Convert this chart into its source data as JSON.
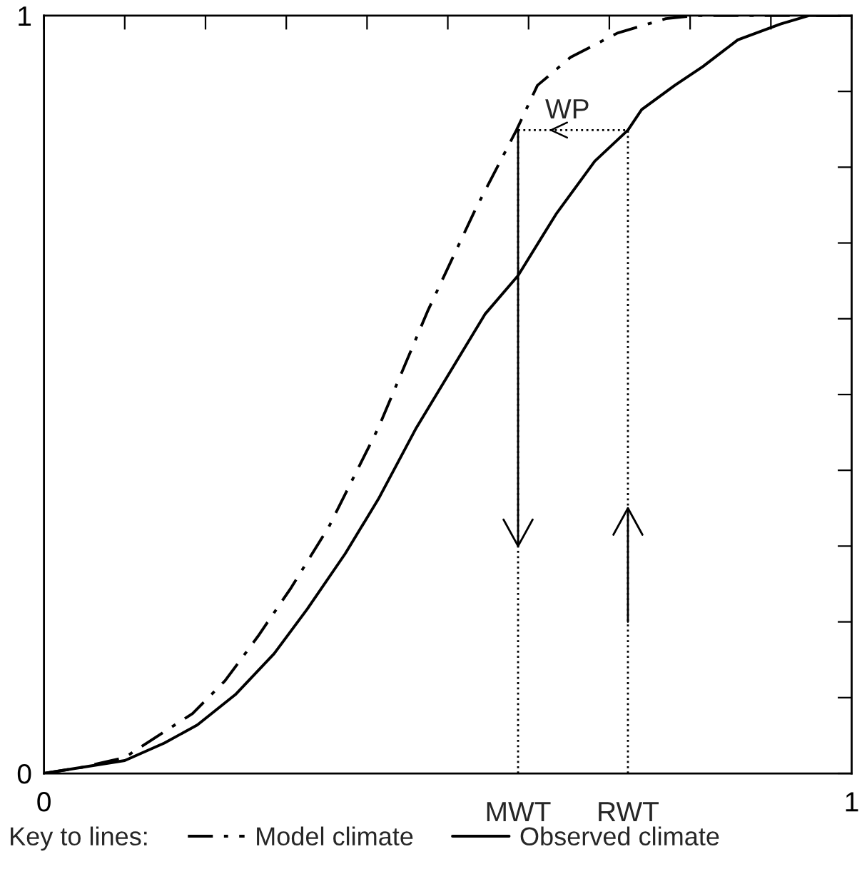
{
  "chart_data": {
    "type": "line",
    "xlim": [
      0,
      1
    ],
    "ylim": [
      0,
      1
    ],
    "xticks": [
      0,
      {
        "value": 0.1,
        "label": null
      },
      {
        "value": 0.2,
        "label": null
      },
      {
        "value": 0.3,
        "label": null
      },
      {
        "value": 0.4,
        "label": null
      },
      {
        "value": 0.5,
        "label": null
      },
      {
        "value": 0.6,
        "label": null
      },
      {
        "value": 0.7,
        "label": null
      },
      {
        "value": 0.8,
        "label": null
      },
      {
        "value": 0.9,
        "label": null
      },
      1
    ],
    "yticks": [
      0,
      {
        "value": 0.1,
        "label": null
      },
      {
        "value": 0.2,
        "label": null
      },
      {
        "value": 0.3,
        "label": null
      },
      {
        "value": 0.4,
        "label": null
      },
      {
        "value": 0.5,
        "label": null
      },
      {
        "value": 0.6,
        "label": null
      },
      {
        "value": 0.7,
        "label": null
      },
      {
        "value": 0.8,
        "label": null
      },
      {
        "value": 0.9,
        "label": null
      },
      1
    ],
    "grid": false,
    "legend": "bottom",
    "legend_title": "Key to lines:",
    "series": [
      {
        "name": "Model climate",
        "color": "#000000",
        "line_style": "dashdot",
        "x": [
          0,
          0.047,
          0.1,
          0.149,
          0.184,
          0.224,
          0.265,
          0.306,
          0.353,
          0.414,
          0.475,
          0.534,
          0.585,
          0.611,
          0.652,
          0.71,
          0.77,
          0.806,
          1
        ],
        "values": [
          0,
          0.008,
          0.021,
          0.055,
          0.079,
          0.122,
          0.181,
          0.245,
          0.326,
          0.456,
          0.61,
          0.744,
          0.849,
          0.908,
          0.945,
          0.977,
          0.996,
          1,
          1
        ]
      },
      {
        "name": "Observed climate",
        "color": "#000000",
        "line_style": "solid",
        "x": [
          0,
          0.047,
          0.1,
          0.149,
          0.19,
          0.237,
          0.285,
          0.326,
          0.373,
          0.414,
          0.461,
          0.546,
          0.587,
          0.634,
          0.682,
          0.723,
          0.74,
          0.781,
          0.816,
          0.859,
          0.912,
          0.947,
          1
        ],
        "values": [
          0,
          0.008,
          0.017,
          0.04,
          0.064,
          0.104,
          0.158,
          0.217,
          0.29,
          0.362,
          0.456,
          0.606,
          0.657,
          0.738,
          0.808,
          0.849,
          0.876,
          0.908,
          0.933,
          0.968,
          0.989,
          1,
          1
        ]
      }
    ],
    "ref_lines": [
      {
        "axis": "x",
        "value": 0.587,
        "label": "MWT",
        "line_style": "dotted"
      },
      {
        "axis": "x",
        "value": 0.723,
        "label": "RWT",
        "line_style": "dotted"
      },
      {
        "axis": "y",
        "value": 0.849,
        "label": "WP",
        "line_style": "dotted"
      }
    ]
  }
}
